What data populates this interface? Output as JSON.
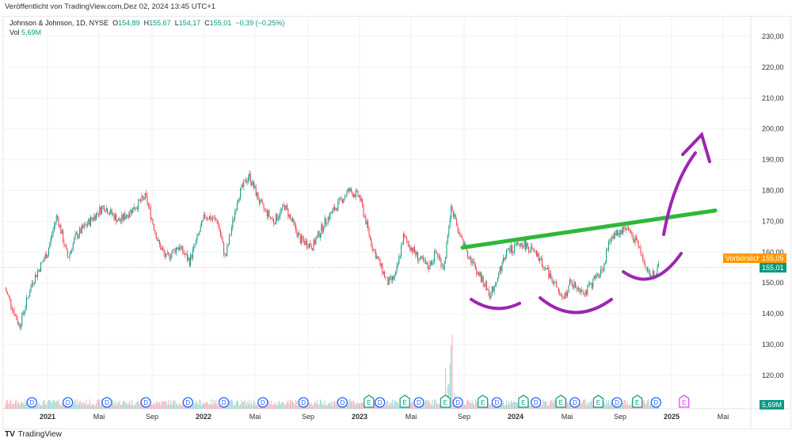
{
  "published": "Veröffentlicht von TradingView.com,Dez 02, 2024 13:45 UTC+1",
  "legend": {
    "symbol": "Johnson & Johnson, 1D, NYSE",
    "o_label": "O",
    "o": "154,89",
    "h_label": "H",
    "h": "155,67",
    "l_label": "L",
    "l": "154,17",
    "c_label": "C",
    "c": "155,01",
    "change": "−0,39 (−0,25%)",
    "vol_label": "Vol",
    "vol": "5,69M"
  },
  "price_tags": {
    "premarket_label": "Vorbörslich",
    "premarket": "155,05",
    "last": "155,01",
    "volume": "5,69M"
  },
  "colors": {
    "up": "#089981",
    "down": "#f23645",
    "premarket": "#ff9800",
    "trend": "#2eb83a",
    "drawing": "#9c27b0",
    "dividend": "#2962ff",
    "earnings": "#089981",
    "future_earnings": "#e040fb"
  },
  "footer": {
    "brand": "TradingView"
  },
  "chart_data": {
    "type": "candlestick",
    "title": "Johnson & Johnson, 1D, NYSE",
    "y_ticks": [
      "230,00",
      "220,00",
      "210,00",
      "200,00",
      "190,00",
      "180,00",
      "170,00",
      "160,00",
      "150,00",
      "140,00",
      "130,00",
      "120,00"
    ],
    "y_range": [
      116,
      234
    ],
    "x_ticks": [
      {
        "t": 2021.0,
        "label": "2021"
      },
      {
        "t": 2021.33,
        "label": "Mai"
      },
      {
        "t": 2021.67,
        "label": "Sep"
      },
      {
        "t": 2022.0,
        "label": "2022"
      },
      {
        "t": 2022.33,
        "label": "Mai"
      },
      {
        "t": 2022.67,
        "label": "Sep"
      },
      {
        "t": 2023.0,
        "label": "2023"
      },
      {
        "t": 2023.33,
        "label": "Mai"
      },
      {
        "t": 2023.67,
        "label": "Sep"
      },
      {
        "t": 2024.0,
        "label": "2024"
      },
      {
        "t": 2024.33,
        "label": "Mai"
      },
      {
        "t": 2024.67,
        "label": "Sep"
      },
      {
        "t": 2025.0,
        "label": "2025"
      },
      {
        "t": 2025.33,
        "label": "Mai"
      }
    ],
    "price_path": [
      [
        2020.73,
        148
      ],
      [
        2020.82,
        136
      ],
      [
        2020.9,
        150
      ],
      [
        2021.0,
        160
      ],
      [
        2021.06,
        172
      ],
      [
        2021.13,
        158
      ],
      [
        2021.18,
        165
      ],
      [
        2021.36,
        175
      ],
      [
        2021.46,
        170
      ],
      [
        2021.63,
        178
      ],
      [
        2021.71,
        163
      ],
      [
        2021.76,
        158
      ],
      [
        2021.84,
        162
      ],
      [
        2021.91,
        157
      ],
      [
        2022.01,
        172
      ],
      [
        2022.09,
        170
      ],
      [
        2022.14,
        158
      ],
      [
        2022.22,
        178
      ],
      [
        2022.29,
        185
      ],
      [
        2022.37,
        175
      ],
      [
        2022.45,
        170
      ],
      [
        2022.52,
        175
      ],
      [
        2022.62,
        164
      ],
      [
        2022.7,
        162
      ],
      [
        2022.78,
        170
      ],
      [
        2022.93,
        180
      ],
      [
        2023.0,
        178
      ],
      [
        2023.08,
        162
      ],
      [
        2023.18,
        150
      ],
      [
        2023.23,
        152
      ],
      [
        2023.28,
        165
      ],
      [
        2023.38,
        158
      ],
      [
        2023.44,
        155
      ],
      [
        2023.49,
        160
      ],
      [
        2023.54,
        155
      ],
      [
        2023.59,
        175
      ],
      [
        2023.64,
        165
      ],
      [
        2023.74,
        155
      ],
      [
        2023.84,
        146
      ],
      [
        2023.94,
        160
      ],
      [
        2024.05,
        163
      ],
      [
        2024.15,
        158
      ],
      [
        2024.25,
        150
      ],
      [
        2024.3,
        144
      ],
      [
        2024.35,
        150
      ],
      [
        2024.45,
        147
      ],
      [
        2024.56,
        155
      ],
      [
        2024.61,
        165
      ],
      [
        2024.71,
        168
      ],
      [
        2024.78,
        163
      ],
      [
        2024.86,
        152
      ],
      [
        2024.92,
        155
      ]
    ],
    "last_close": 155.01,
    "premarket": 155.05,
    "dividends": [
      2020.9,
      2021.13,
      2021.38,
      2021.63,
      2021.9,
      2022.13,
      2022.38,
      2022.64,
      2022.89,
      2023.13,
      2023.38,
      2023.63,
      2023.88,
      2024.13,
      2024.38,
      2024.65,
      2024.9
    ],
    "earnings": [
      2023.06,
      2023.29,
      2023.55,
      2023.79,
      2024.05,
      2024.29,
      2024.53,
      2024.78
    ],
    "future_earnings": [
      2025.08
    ],
    "trendline": [
      [
        2023.66,
        161.5
      ],
      [
        2025.28,
        173.5
      ]
    ]
  }
}
